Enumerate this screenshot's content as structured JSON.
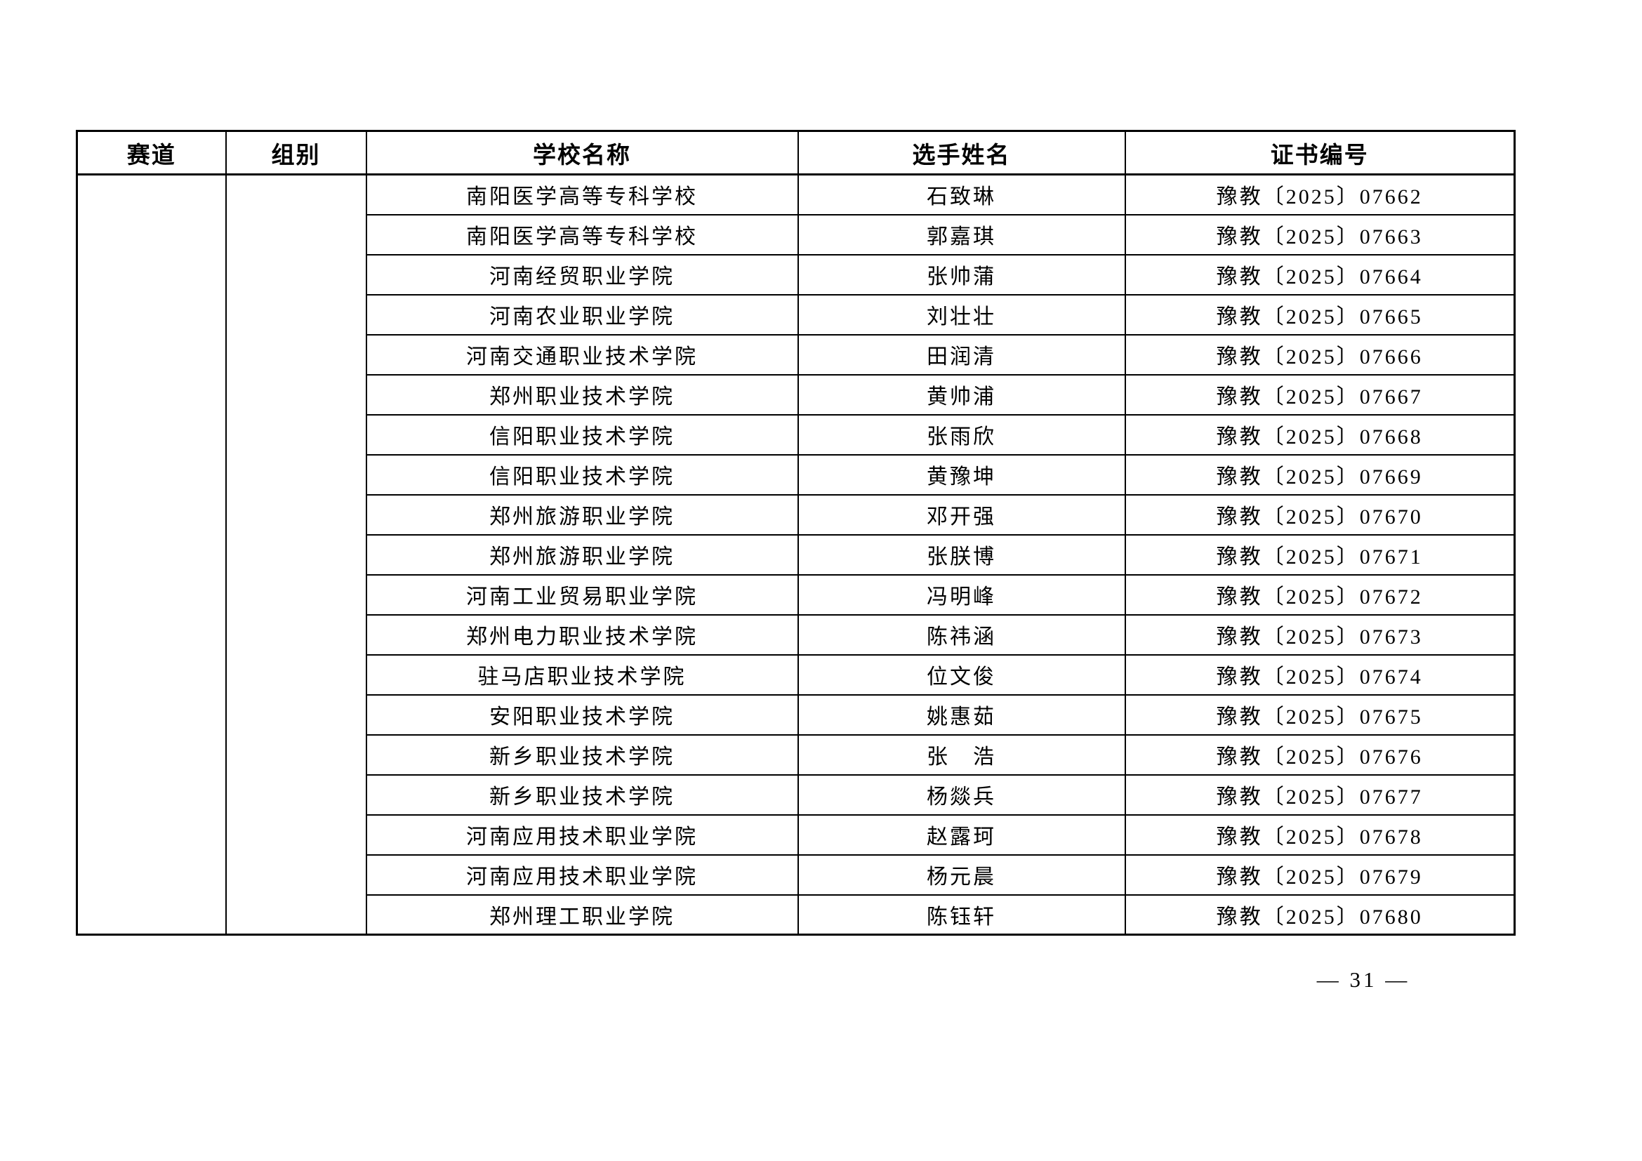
{
  "page": {
    "page_number": "— 31 —",
    "background_color": "#ffffff",
    "text_color": "#000000",
    "border_color": "#000000"
  },
  "table": {
    "headers": [
      "赛道",
      "组别",
      "学校名称",
      "选手姓名",
      "证书编号"
    ],
    "track_value": "",
    "group_value": "",
    "rows": [
      {
        "school": "南阳医学高等专科学校",
        "name": "石致琳",
        "cert": "豫教〔2025〕07662"
      },
      {
        "school": "南阳医学高等专科学校",
        "name": "郭嘉琪",
        "cert": "豫教〔2025〕07663"
      },
      {
        "school": "河南经贸职业学院",
        "name": "张帅蒲",
        "cert": "豫教〔2025〕07664"
      },
      {
        "school": "河南农业职业学院",
        "name": "刘壮壮",
        "cert": "豫教〔2025〕07665"
      },
      {
        "school": "河南交通职业技术学院",
        "name": "田润清",
        "cert": "豫教〔2025〕07666"
      },
      {
        "school": "郑州职业技术学院",
        "name": "黄帅浦",
        "cert": "豫教〔2025〕07667"
      },
      {
        "school": "信阳职业技术学院",
        "name": "张雨欣",
        "cert": "豫教〔2025〕07668"
      },
      {
        "school": "信阳职业技术学院",
        "name": "黄豫坤",
        "cert": "豫教〔2025〕07669"
      },
      {
        "school": "郑州旅游职业学院",
        "name": "邓开强",
        "cert": "豫教〔2025〕07670"
      },
      {
        "school": "郑州旅游职业学院",
        "name": "张朕博",
        "cert": "豫教〔2025〕07671"
      },
      {
        "school": "河南工业贸易职业学院",
        "name": "冯明峰",
        "cert": "豫教〔2025〕07672"
      },
      {
        "school": "郑州电力职业技术学院",
        "name": "陈祎涵",
        "cert": "豫教〔2025〕07673"
      },
      {
        "school": "驻马店职业技术学院",
        "name": "位文俊",
        "cert": "豫教〔2025〕07674"
      },
      {
        "school": "安阳职业技术学院",
        "name": "姚惠茹",
        "cert": "豫教〔2025〕07675"
      },
      {
        "school": "新乡职业技术学院",
        "name": "张　浩",
        "cert": "豫教〔2025〕07676"
      },
      {
        "school": "新乡职业技术学院",
        "name": "杨燚兵",
        "cert": "豫教〔2025〕07677"
      },
      {
        "school": "河南应用技术职业学院",
        "name": "赵露珂",
        "cert": "豫教〔2025〕07678"
      },
      {
        "school": "河南应用技术职业学院",
        "name": "杨元晨",
        "cert": "豫教〔2025〕07679"
      },
      {
        "school": "郑州理工职业学院",
        "name": "陈钰轩",
        "cert": "豫教〔2025〕07680"
      }
    ]
  }
}
